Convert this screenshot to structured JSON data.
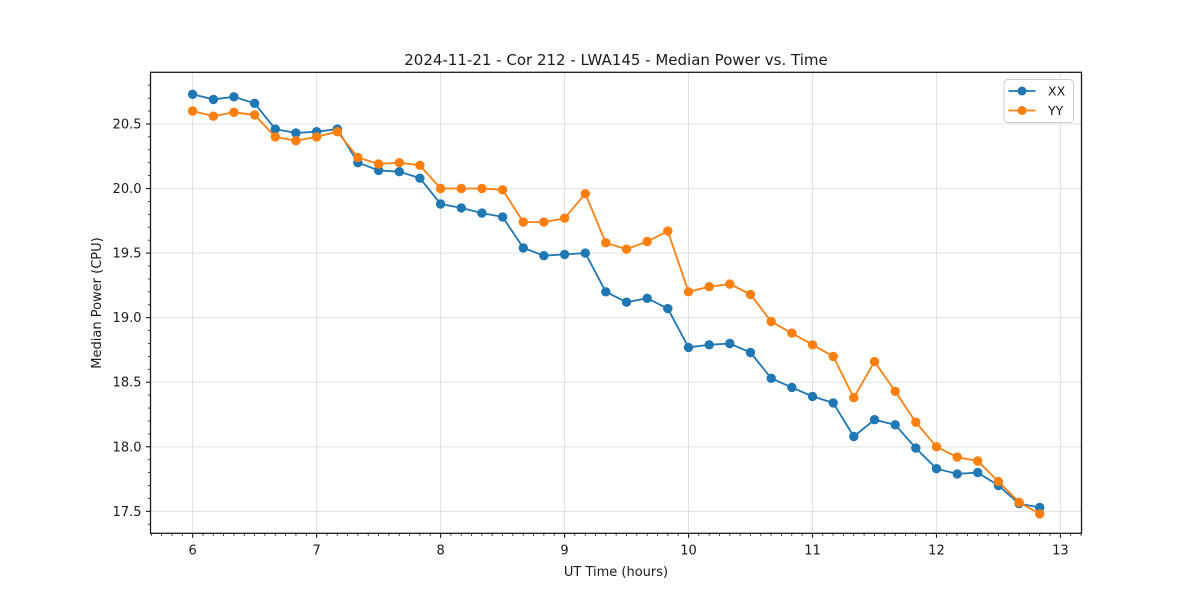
{
  "figure": {
    "background": "#ffffff",
    "plot_background": "#ffffff",
    "grid_color": "#dedede",
    "spine_color": "#1a1a1a",
    "text_color": "#1a1a1a"
  },
  "chart_data": {
    "type": "line",
    "title": "2024-11-21 - Cor 212 - LWA145 - Median Power vs. Time",
    "xlabel": "UT Time (hours)",
    "ylabel": "Median Power (CPU)",
    "xlim": [
      5.66,
      13.17
    ],
    "ylim": [
      17.33,
      20.9
    ],
    "xticks": [
      6,
      7,
      8,
      9,
      10,
      11,
      12,
      13
    ],
    "yticks": [
      17.5,
      18.0,
      18.5,
      19.0,
      19.5,
      20.0,
      20.5
    ],
    "minor_x_step": 0.08333,
    "minor_y_step": 0.1,
    "grid": true,
    "legend_position": "top-right",
    "x": [
      6.0,
      6.167,
      6.333,
      6.5,
      6.667,
      6.833,
      7.0,
      7.167,
      7.333,
      7.5,
      7.667,
      7.833,
      8.0,
      8.167,
      8.333,
      8.5,
      8.667,
      8.833,
      9.0,
      9.167,
      9.333,
      9.5,
      9.667,
      9.833,
      10.0,
      10.167,
      10.333,
      10.5,
      10.667,
      10.833,
      11.0,
      11.167,
      11.333,
      11.5,
      11.667,
      11.833,
      12.0,
      12.167,
      12.333,
      12.5,
      12.667,
      12.833
    ],
    "series": [
      {
        "name": "XX",
        "color": "#1f77b4",
        "values": [
          20.73,
          20.69,
          20.71,
          20.66,
          20.46,
          20.43,
          20.44,
          20.46,
          20.2,
          20.14,
          20.13,
          20.08,
          19.88,
          19.85,
          19.81,
          19.78,
          19.54,
          19.48,
          19.49,
          19.5,
          19.2,
          19.12,
          19.15,
          19.07,
          18.77,
          18.79,
          18.8,
          18.73,
          18.53,
          18.46,
          18.39,
          18.34,
          18.08,
          18.21,
          18.17,
          17.99,
          17.83,
          17.79,
          17.8,
          17.7,
          17.56,
          17.53
        ]
      },
      {
        "name": "YY",
        "color": "#ff7f0e",
        "values": [
          20.6,
          20.56,
          20.59,
          20.57,
          20.4,
          20.37,
          20.4,
          20.44,
          20.24,
          20.19,
          20.2,
          20.18,
          20.0,
          20.0,
          20.0,
          19.99,
          19.74,
          19.74,
          19.77,
          19.96,
          19.58,
          19.53,
          19.59,
          19.67,
          19.2,
          19.24,
          19.26,
          19.18,
          18.97,
          18.88,
          18.79,
          18.7,
          18.38,
          18.66,
          18.43,
          18.19,
          18.0,
          17.92,
          17.89,
          17.73,
          17.57,
          17.48
        ]
      }
    ]
  }
}
